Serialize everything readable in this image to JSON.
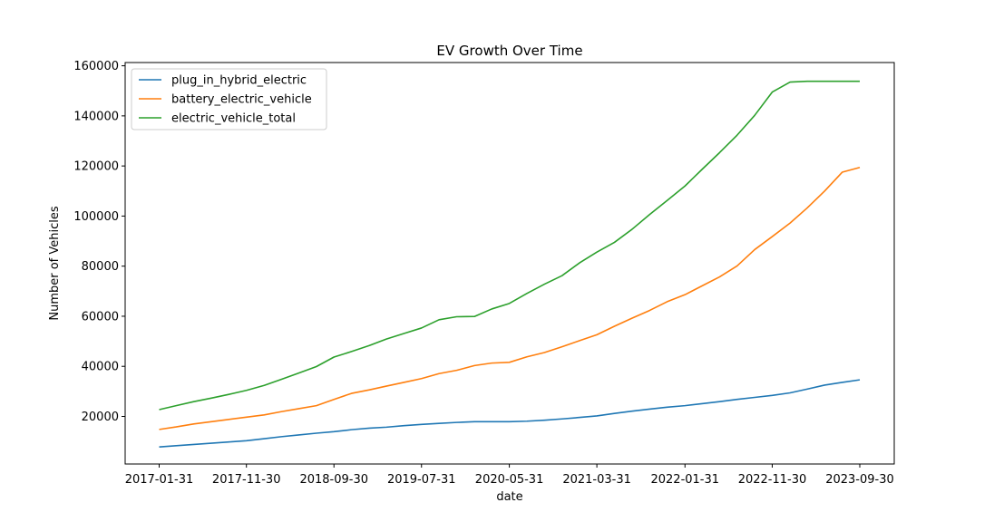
{
  "chart_data": {
    "type": "line",
    "title": "EV Growth Over Time",
    "xlabel": "date",
    "ylabel": "Number of Vehicles",
    "x_ticks": [
      "2017-01-31",
      "2017-11-30",
      "2018-09-30",
      "2019-07-31",
      "2020-05-31",
      "2021-03-31",
      "2022-01-31",
      "2022-11-30",
      "2023-09-30"
    ],
    "y_ticks": [
      20000,
      40000,
      60000,
      80000,
      100000,
      120000,
      140000,
      160000
    ],
    "ylim": [
      1000,
      161300
    ],
    "legend_position": "top-left",
    "grid": false,
    "x": [
      "2017-01-31",
      "2017-03-31",
      "2017-05-31",
      "2017-07-31",
      "2017-09-30",
      "2017-11-30",
      "2018-01-31",
      "2018-03-31",
      "2018-05-31",
      "2018-07-31",
      "2018-09-30",
      "2018-11-30",
      "2019-01-31",
      "2019-03-31",
      "2019-05-31",
      "2019-07-31",
      "2019-09-30",
      "2019-11-30",
      "2020-01-31",
      "2020-03-31",
      "2020-05-31",
      "2020-07-31",
      "2020-09-30",
      "2020-11-30",
      "2021-01-31",
      "2021-03-31",
      "2021-05-31",
      "2021-07-31",
      "2021-09-30",
      "2021-11-30",
      "2022-01-31",
      "2022-03-31",
      "2022-05-31",
      "2022-07-31",
      "2022-09-30",
      "2022-11-30",
      "2023-01-31",
      "2023-03-31",
      "2023-05-31",
      "2023-07-31",
      "2023-09-30"
    ],
    "series": [
      {
        "name": "plug_in_hybrid_electric",
        "color": "#1f77b4",
        "values": [
          7800,
          8300,
          8800,
          9300,
          9800,
          10300,
          11100,
          11900,
          12600,
          13300,
          13900,
          14700,
          15300,
          15700,
          16300,
          16800,
          17200,
          17600,
          17900,
          17900,
          17900,
          18100,
          18500,
          19000,
          19600,
          20200,
          21200,
          22100,
          22900,
          23700,
          24300,
          25100,
          25900,
          26800,
          27600,
          28400,
          29400,
          30900,
          32500,
          33600,
          34600
        ]
      },
      {
        "name": "battery_electric_vehicle",
        "color": "#ff7f0e",
        "values": [
          14800,
          15800,
          17000,
          17900,
          18800,
          19700,
          20600,
          21900,
          23100,
          24300,
          26800,
          29200,
          30600,
          32100,
          33600,
          35100,
          37100,
          38400,
          40300,
          41300,
          41600,
          43800,
          45500,
          47800,
          50300,
          52600,
          56000,
          59200,
          62300,
          65800,
          68600,
          72100,
          75700,
          80100,
          86600,
          91800,
          97200,
          103200,
          110000,
          117500,
          119400
        ]
      },
      {
        "name": "electric_vehicle_total",
        "color": "#2ca02c",
        "values": [
          22700,
          24300,
          25900,
          27300,
          28800,
          30400,
          32400,
          34800,
          37300,
          39900,
          43700,
          45900,
          48300,
          50900,
          53100,
          55300,
          58600,
          59800,
          59900,
          62900,
          65100,
          69100,
          72800,
          76200,
          81400,
          85600,
          89500,
          94700,
          100600,
          106200,
          112000,
          118600,
          125300,
          132300,
          140200,
          149500,
          153500,
          153800,
          153800,
          153800,
          153800
        ]
      }
    ]
  }
}
